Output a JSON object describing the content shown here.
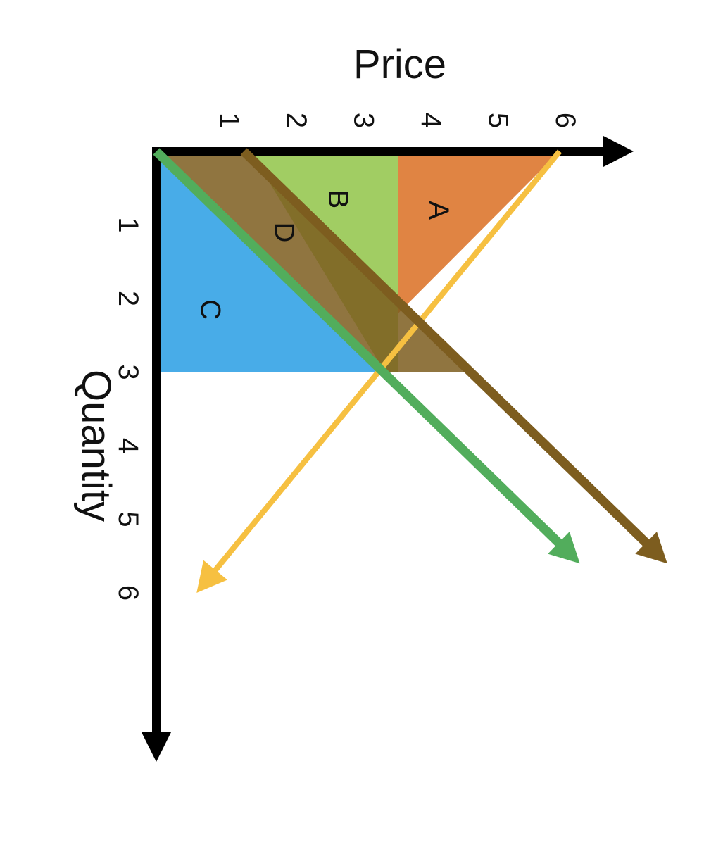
{
  "chart_data": {
    "type": "line",
    "orientation": "rotated-90-clockwise",
    "xlabel": "Quantity",
    "ylabel": "Price",
    "x_ticks": [
      "1",
      "2",
      "3",
      "4",
      "5",
      "6"
    ],
    "y_ticks": [
      "1",
      "2",
      "3",
      "4",
      "5",
      "6"
    ],
    "xlim": [
      0,
      8.2
    ],
    "ylim": [
      0,
      7.2
    ],
    "lines": [
      {
        "name": "",
        "color": "#f6c041",
        "points": [
          [
            0,
            6
          ],
          [
            6,
            0.6
          ]
        ]
      },
      {
        "name": "",
        "color": "#52ad5c",
        "points": [
          [
            0,
            0
          ],
          [
            5.6,
            6.3
          ]
        ]
      },
      {
        "name": "",
        "color": "#7d5d1f",
        "points": [
          [
            0,
            1.3
          ],
          [
            5.6,
            7.6
          ]
        ]
      }
    ],
    "regions": [
      {
        "label": "A",
        "color": "#e08443",
        "points": [
          [
            0,
            3.6
          ],
          [
            0,
            6
          ],
          [
            2.2,
            3.6
          ]
        ]
      },
      {
        "label": "B",
        "color": "#a1cd63",
        "points": [
          [
            0,
            1.4
          ],
          [
            0,
            3.6
          ],
          [
            2.2,
            3.6
          ],
          [
            3,
            3.6
          ],
          [
            3,
            3.4
          ]
        ]
      },
      {
        "label": "C",
        "color": "#48ace8",
        "points": [
          [
            0,
            0
          ],
          [
            3,
            0
          ],
          [
            3,
            3.4
          ]
        ]
      },
      {
        "label": "D",
        "color": "#7d5d1f",
        "points": [
          [
            0,
            0
          ],
          [
            0,
            1.4
          ],
          [
            3,
            4.7
          ],
          [
            3,
            3.4
          ]
        ]
      }
    ],
    "grid": false,
    "legend": "none"
  }
}
